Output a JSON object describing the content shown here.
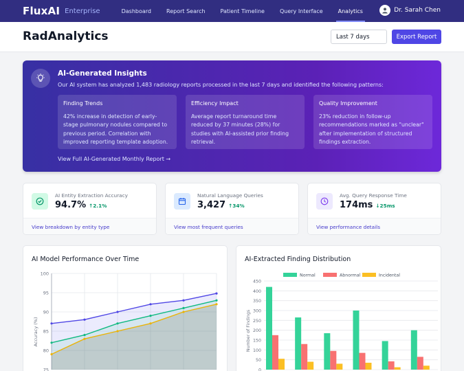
{
  "nav": {
    "brand": "FluxAI",
    "brand_sub": "Enterprise",
    "links": [
      "Dashboard",
      "Report Search",
      "Patient Timeline",
      "Query Interface",
      "Analytics"
    ],
    "active": "Analytics",
    "user_name": "Dr. Sarah Chen",
    "avatar_icon": "user-icon"
  },
  "header": {
    "title": "RadAnalytics",
    "range_value": "Last 7 days",
    "export_label": "Export Report"
  },
  "insights": {
    "icon": "lightbulb-icon",
    "title": "AI-Generated Insights",
    "description": "Our AI system has analyzed 1,483 radiology reports processed in the last 7 days and identified the following patterns:",
    "cards": [
      {
        "title": "Finding Trends",
        "text": "42% increase in detection of early-stage pulmonary nodules compared to previous period. Correlation with improved reporting template adoption."
      },
      {
        "title": "Efficiency Impact",
        "text": "Average report turnaround time reduced by 37 minutes (28%) for studies with AI-assisted prior finding retrieval."
      },
      {
        "title": "Quality Improvement",
        "text": "23% reduction in follow-up recommendations marked as \"unclear\" after implementation of structured findings extraction."
      }
    ],
    "link": "View Full AI-Generated Monthly Report →"
  },
  "stats": [
    {
      "icon": "check-circle-icon",
      "label": "AI Entity Extraction Accuracy",
      "value": "94.7%",
      "delta": "↑2.1%",
      "footer": "View breakdown by entity type",
      "icon_bg": "#d1fae5",
      "icon_color": "#059669"
    },
    {
      "icon": "calendar-icon",
      "label": "Natural Language Queries",
      "value": "3,427",
      "delta": "↑34%",
      "footer": "View most frequent queries",
      "icon_bg": "#dbeafe",
      "icon_color": "#2563eb"
    },
    {
      "icon": "clock-icon",
      "label": "Avg. Query Response Time",
      "value": "174ms",
      "delta": "↓25ms",
      "footer": "View performance details",
      "icon_bg": "#ede9fe",
      "icon_color": "#7c3aed"
    }
  ],
  "panels": {
    "line_title": "AI Model Performance Over Time",
    "bar_title": "AI-Extracted Finding Distribution"
  },
  "chart_data": [
    {
      "type": "line",
      "title": "AI Model Performance Over Time",
      "ylabel": "Accuracy (%)",
      "ylim": [
        75,
        100
      ],
      "yticks": [
        75,
        80,
        85,
        90,
        95,
        100
      ],
      "grid": true,
      "series": [
        {
          "values": [
            87,
            88,
            90,
            92,
            93,
            94.8
          ],
          "color": "#4f46e5"
        },
        {
          "values": [
            82,
            84,
            87,
            89,
            91,
            93
          ],
          "color": "#10b981"
        },
        {
          "values": [
            79,
            83,
            85,
            87,
            90,
            92
          ],
          "color": "#eab308"
        }
      ]
    },
    {
      "type": "bar",
      "title": "AI-Extracted Finding Distribution",
      "ylabel": "Number of Findings",
      "ylim": [
        0,
        450
      ],
      "yticks": [
        0,
        50,
        100,
        150,
        200,
        250,
        300,
        350,
        400,
        450
      ],
      "legend_position": "top",
      "grid": true,
      "series": [
        {
          "name": "Normal",
          "color": "#34d399",
          "values": [
            420,
            265,
            185,
            300,
            145,
            200
          ]
        },
        {
          "name": "Abnormal",
          "color": "#f87171",
          "values": [
            175,
            130,
            95,
            85,
            42,
            65
          ]
        },
        {
          "name": "Incidental",
          "color": "#fbbf24",
          "values": [
            55,
            40,
            30,
            35,
            12,
            20
          ]
        }
      ]
    }
  ]
}
